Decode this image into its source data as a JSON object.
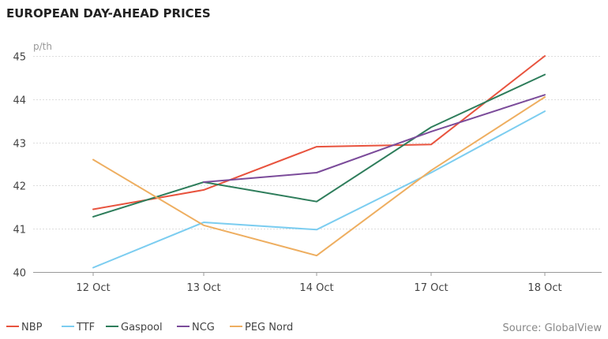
{
  "chart_data": {
    "type": "line",
    "title": "EUROPEAN DAY-AHEAD PRICES",
    "unit_label": "p/th",
    "categories": [
      "12 Oct",
      "13 Oct",
      "14 Oct",
      "17 Oct",
      "18 Oct"
    ],
    "ylim": [
      40,
      45
    ],
    "yticks": [
      40,
      41,
      42,
      43,
      44,
      45
    ],
    "grid": true,
    "legend_position": "bottom-left",
    "source": "Source: GlobalView",
    "series": [
      {
        "name": "NBP",
        "color": "#e8533e",
        "values": [
          41.45,
          41.9,
          42.9,
          42.95,
          45.0
        ]
      },
      {
        "name": "TTF",
        "color": "#7ccdf0",
        "values": [
          40.1,
          41.15,
          40.98,
          42.3,
          43.72
        ]
      },
      {
        "name": "Gaspool",
        "color": "#2e7d5b",
        "values": [
          41.28,
          42.08,
          41.63,
          43.35,
          44.57
        ]
      },
      {
        "name": "NCG",
        "color": "#7b4b9a",
        "values": [
          null,
          42.08,
          42.3,
          43.25,
          44.1
        ]
      },
      {
        "name": "PEG Nord",
        "color": "#eeae60",
        "values": [
          42.6,
          41.08,
          40.38,
          42.35,
          44.05
        ]
      }
    ]
  }
}
